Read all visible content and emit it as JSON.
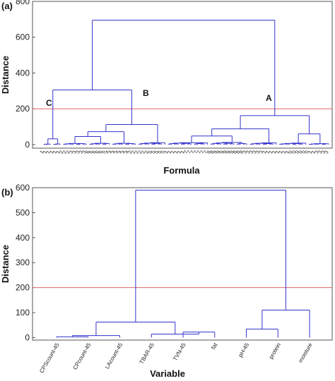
{
  "chart_data": [
    {
      "type": "dendrogram",
      "panel_label": "(a)",
      "xlabel": "Formula",
      "ylabel": "Distance",
      "ylim": [
        -20,
        800
      ],
      "yticks": [
        0,
        200,
        400,
        600,
        800
      ],
      "threshold": 200,
      "threshold_color": "#e06666",
      "link_color": "#3333cc",
      "leaf_labels": [
        "1",
        "1",
        "1",
        "1",
        "1",
        "1",
        "2",
        "2",
        "2",
        "3",
        "3",
        "3",
        "3",
        "3",
        "6",
        "6",
        "6",
        "6",
        "6",
        "5",
        "4",
        "4",
        "4",
        "4",
        "4",
        "4",
        "4",
        "2",
        "2",
        "2",
        "2",
        "2",
        "2",
        "5",
        "5",
        "5",
        "5",
        "5",
        "1",
        "1",
        "1",
        "1",
        "1",
        "1",
        "7",
        "7",
        "7",
        "7",
        "7",
        "7",
        "7",
        "8",
        "8",
        "9",
        "9",
        "9",
        "9",
        "9",
        "9",
        "8",
        "8",
        "8",
        "3",
        "3",
        "3",
        "3",
        "3",
        "3",
        "1",
        "1",
        "1",
        "1",
        "1",
        "1",
        "1",
        "1",
        "0",
        "0",
        "0",
        "0",
        "0",
        "0",
        "1",
        "1",
        "3",
        "3",
        "3",
        "3"
      ],
      "clusters": [
        {
          "label": "A",
          "height": 200
        },
        {
          "label": "B",
          "height": 200
        },
        {
          "label": "C",
          "height": 200
        }
      ],
      "merges": [
        {
          "children": [
            "C",
            "B"
          ],
          "height": 305
        },
        {
          "children": [
            "CB",
            "A"
          ],
          "height": 695
        }
      ]
    },
    {
      "type": "dendrogram",
      "panel_label": "(b)",
      "xlabel": "Variable",
      "ylabel": "Distance",
      "ylim": [
        -10,
        600
      ],
      "yticks": [
        0,
        100,
        200,
        300,
        400,
        500,
        600
      ],
      "threshold": 200,
      "threshold_color": "#e06666",
      "link_color": "#3333cc",
      "leaf_labels": [
        "CPScount-45",
        "CPcount-45",
        "LAcount-45",
        "TBAR-45",
        "TVN-45",
        "fat",
        "pH-45",
        "protein",
        "moisture"
      ],
      "merges": [
        {
          "children": [
            "CPScount-45",
            "CPcount-45"
          ],
          "height": 3
        },
        {
          "children": [
            "CPScount-45+CPcount-45",
            "LAcount-45"
          ],
          "height": 8
        },
        {
          "children": [
            "TVN-45",
            "fat"
          ],
          "height": 22
        },
        {
          "children": [
            "TBAR-45",
            "TVN-45+fat"
          ],
          "height": 14
        },
        {
          "children": [
            "count-group",
            "TBAR-group"
          ],
          "height": 62
        },
        {
          "children": [
            "pH-45",
            "protein"
          ],
          "height": 34
        },
        {
          "children": [
            "pH-45+protein",
            "moisture"
          ],
          "height": 110
        },
        {
          "children": [
            "left-group",
            "right-group"
          ],
          "height": 590
        }
      ]
    }
  ]
}
